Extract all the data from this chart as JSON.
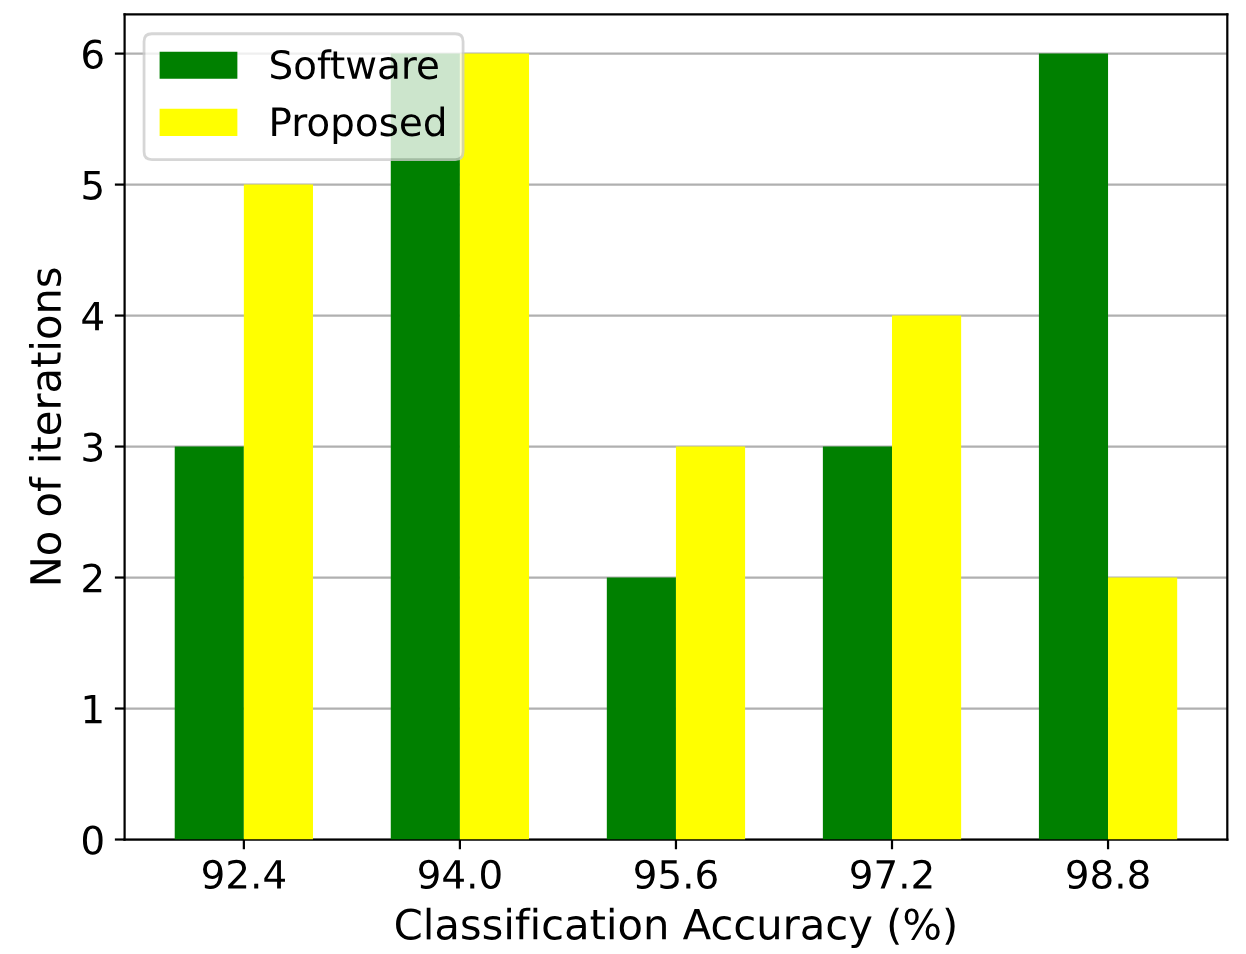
{
  "chart_data": {
    "type": "bar",
    "xlabel": "Classification Accuracy (%)",
    "ylabel": "No of iterations",
    "categories": [
      "92.4",
      "94.0",
      "95.6",
      "97.2",
      "98.8"
    ],
    "series": [
      {
        "name": "Software",
        "color": "#008000",
        "values": [
          3,
          6,
          2,
          3,
          6
        ]
      },
      {
        "name": "Proposed",
        "color": "#ffff00",
        "values": [
          5,
          6,
          3,
          4,
          2
        ]
      }
    ],
    "ylim": [
      0,
      6.3
    ],
    "yticks": [
      0,
      1,
      2,
      3,
      4,
      5,
      6
    ],
    "grid": "y",
    "legend": "top left"
  }
}
